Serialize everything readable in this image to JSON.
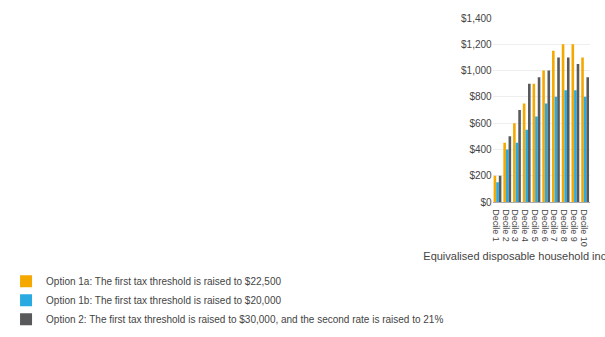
{
  "chart_data": {
    "type": "bar",
    "categories": [
      "Decile 1",
      "Decile 2",
      "Decile 3",
      "Decile 4",
      "Decile 5",
      "Decile 6",
      "Decile 7",
      "Decile 8",
      "Decile 9",
      "Decile 10"
    ],
    "series": [
      {
        "name": "Option 1a: The first tax threshold is raised to $22,500",
        "color": "#F5A800",
        "values": [
          200,
          450,
          600,
          750,
          900,
          1000,
          1150,
          1200,
          1200,
          1100
        ]
      },
      {
        "name": "Option 1b: The first tax threshold is raised to $20,000",
        "color": "#29ABE2",
        "values": [
          150,
          400,
          450,
          550,
          650,
          750,
          800,
          850,
          850,
          800
        ]
      },
      {
        "name": "Option 2: The first tax threshold is raised to $30,000, and the second rate is raised to 21%",
        "color": "#58595B",
        "values": [
          200,
          500,
          700,
          900,
          950,
          1000,
          1100,
          1100,
          1050,
          950
        ]
      }
    ],
    "xlabel": "Equivalised disposable household income decile",
    "ylim": [
      0,
      1400
    ],
    "yticks": [
      {
        "value": 0,
        "label": "$0"
      },
      {
        "value": 200,
        "label": "$200"
      },
      {
        "value": 400,
        "label": "$400"
      },
      {
        "value": 600,
        "label": "$600"
      },
      {
        "value": 800,
        "label": "$800"
      },
      {
        "value": 1000,
        "label": "$1,000"
      },
      {
        "value": 1200,
        "label": "$1,200"
      },
      {
        "value": 1400,
        "label": "$1,400"
      }
    ],
    "grid": true,
    "legend": "below"
  }
}
